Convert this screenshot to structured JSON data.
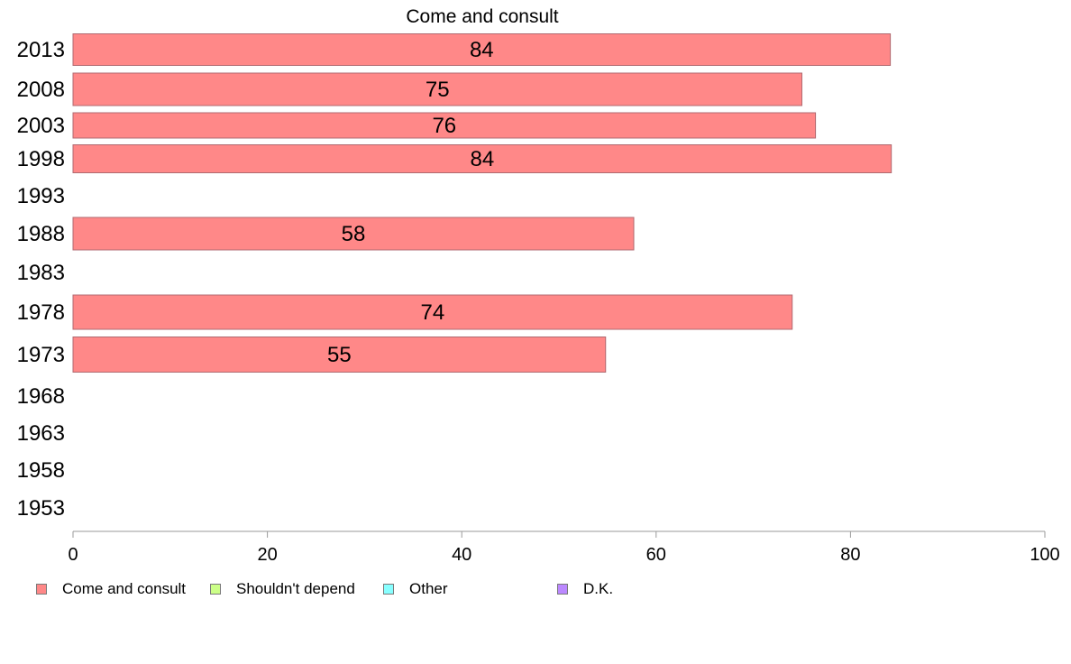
{
  "chart_data": {
    "type": "bar",
    "orientation": "horizontal",
    "title": "Come and consult",
    "xlabel": "",
    "ylabel": "",
    "categories": [
      "2013",
      "2008",
      "2003",
      "1998",
      "1993",
      "1988",
      "1983",
      "1978",
      "1973",
      "1968",
      "1963",
      "1958",
      "1953"
    ],
    "series": [
      {
        "name": "Come and consult",
        "color": "#ff8888",
        "values": [
          84.1,
          75,
          76.4,
          84.2,
          null,
          57.7,
          null,
          74,
          54.8,
          null,
          null,
          null,
          null
        ],
        "labels": [
          "84",
          "75",
          "76",
          "84",
          "",
          "58",
          "",
          "74",
          "55",
          "",
          "",
          "",
          ""
        ]
      }
    ],
    "xlim": [
      0,
      100
    ],
    "xticks": [
      0,
      20,
      40,
      60,
      80,
      100
    ],
    "xtick_labels": [
      "0",
      "20",
      "40",
      "60",
      "80",
      "100"
    ],
    "grid": false,
    "legend": {
      "position": "bottom-left",
      "items": [
        {
          "label": "Come and consult",
          "color": "#ff8888"
        },
        {
          "label": "Shouldn't depend",
          "color": "#ccff88"
        },
        {
          "label": "Other",
          "color": "#88ffff"
        },
        {
          "label": "D.K.",
          "color": "#bb88ff"
        }
      ]
    }
  }
}
